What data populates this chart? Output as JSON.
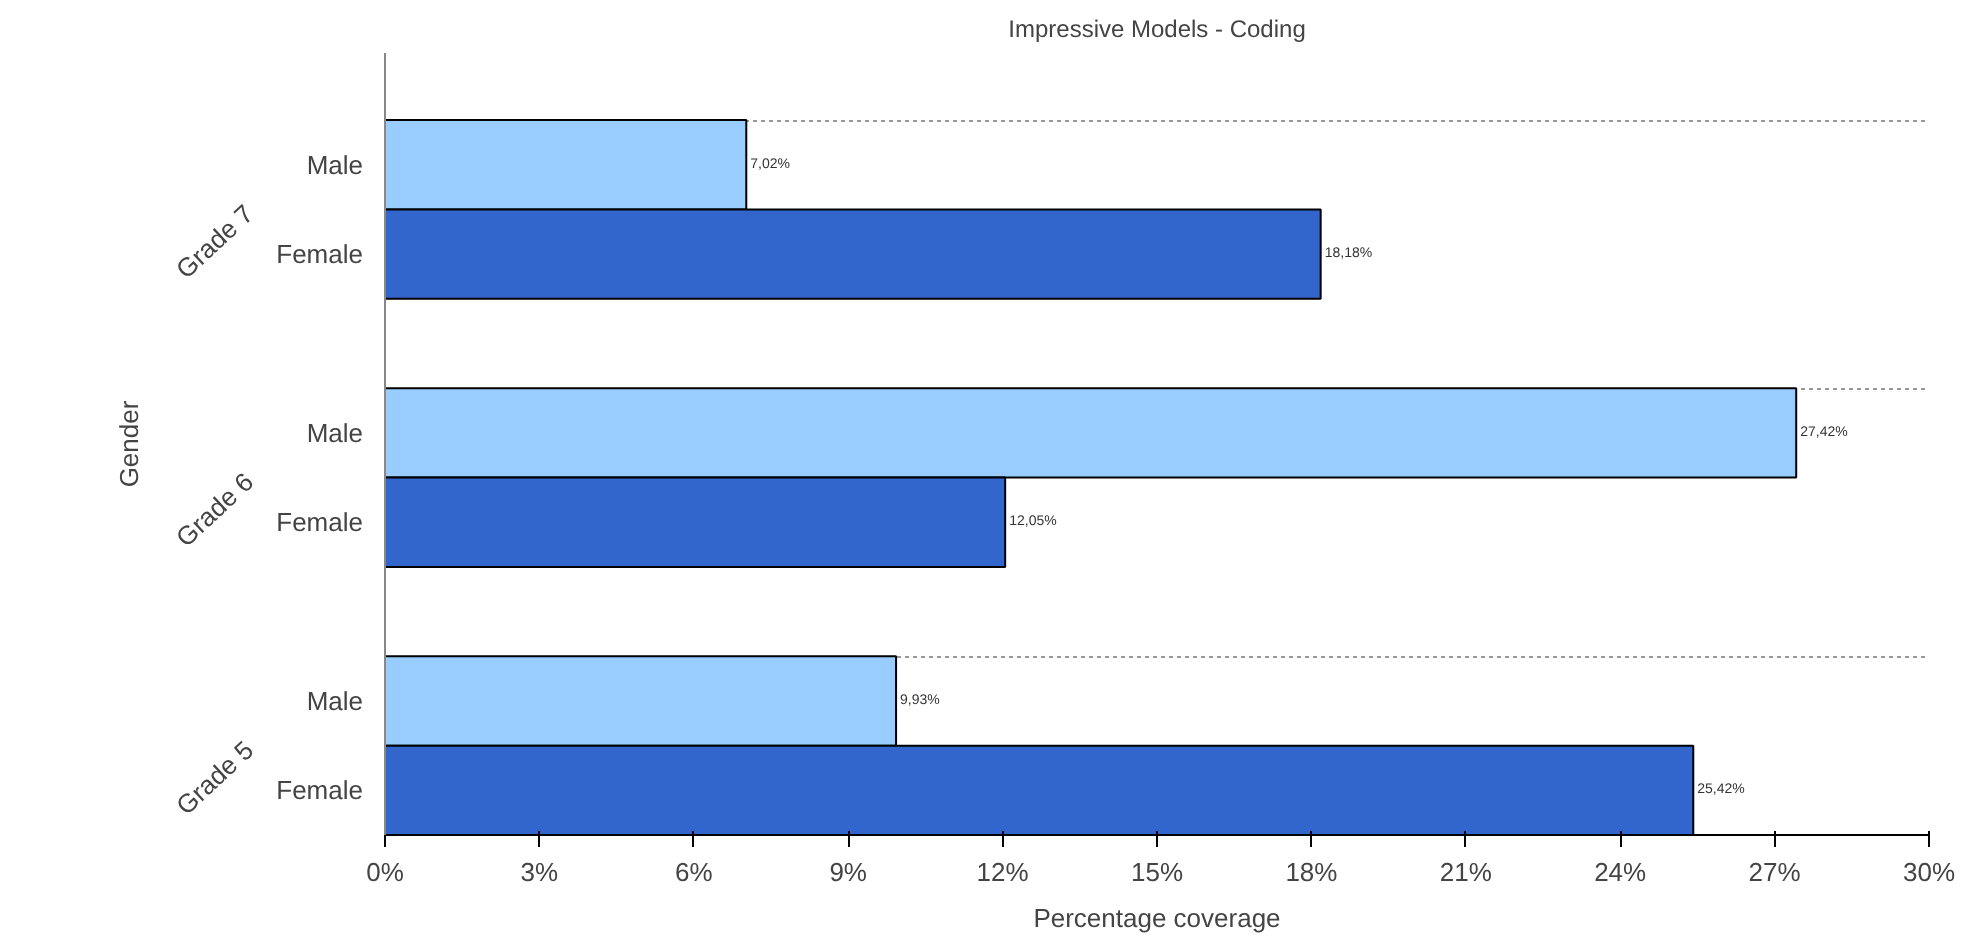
{
  "chart_data": {
    "type": "bar",
    "orientation": "horizontal",
    "title": "Impressive Models - Coding",
    "xlabel": "Percentage coverage",
    "ylabel": "Gender",
    "categories": [
      "Grade 7",
      "Grade 6",
      "Grade 5"
    ],
    "series": [
      {
        "name": "Male",
        "color": "#99ccff",
        "values": [
          7.02,
          27.42,
          9.93
        ],
        "value_labels": [
          "7,02%",
          "27,42%",
          "9,93%"
        ]
      },
      {
        "name": "Female",
        "color": "#3366cc",
        "values": [
          18.18,
          12.05,
          25.42
        ],
        "value_labels": [
          "18,18%",
          "12,05%",
          "25,42%"
        ]
      }
    ],
    "xlim": [
      0,
      30
    ],
    "xticks": [
      {
        "value": 0,
        "label": "0%"
      },
      {
        "value": 3,
        "label": "3%"
      },
      {
        "value": 6,
        "label": "6%"
      },
      {
        "value": 9,
        "label": "9%"
      },
      {
        "value": 12,
        "label": "12%"
      },
      {
        "value": 15,
        "label": "15%"
      },
      {
        "value": 18,
        "label": "18%"
      },
      {
        "value": 21,
        "label": "21%"
      },
      {
        "value": 24,
        "label": "24%"
      },
      {
        "value": 27,
        "label": "27%"
      },
      {
        "value": 30,
        "label": "30%"
      }
    ],
    "grid": "y"
  }
}
